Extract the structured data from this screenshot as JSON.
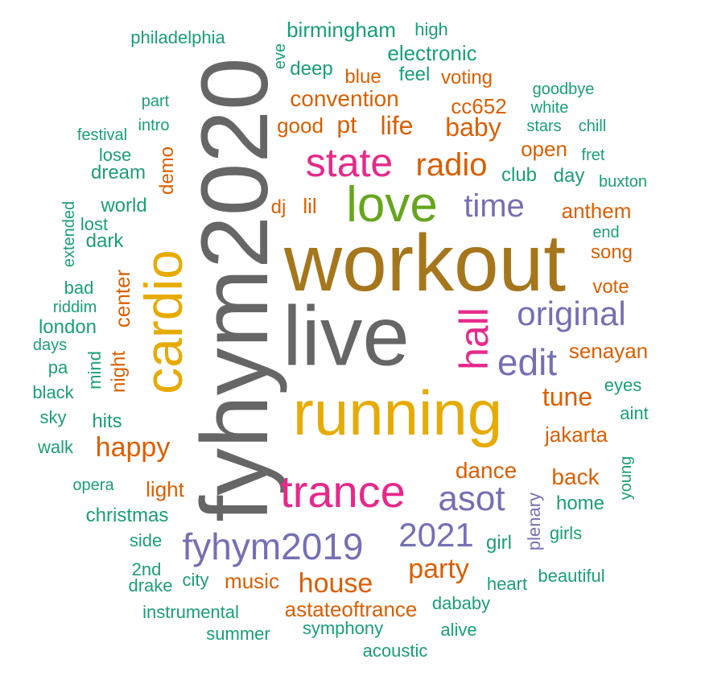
{
  "palette": {
    "teal": "#1b9e77",
    "orange": "#d95f02",
    "purple": "#7570b3",
    "pink": "#e7298a",
    "green": "#66a61e",
    "yellow": "#e6ab02",
    "brown": "#a6761d",
    "gray": "#666666"
  },
  "words": [
    {
      "text": "workout",
      "color": "brown"
    },
    {
      "text": "live",
      "color": "gray"
    },
    {
      "text": "fyhym2020",
      "color": "gray"
    },
    {
      "text": "running",
      "color": "yellow"
    },
    {
      "text": "cardio",
      "color": "yellow"
    },
    {
      "text": "love",
      "color": "green"
    },
    {
      "text": "trance",
      "color": "pink"
    },
    {
      "text": "state",
      "color": "pink"
    },
    {
      "text": "fyhym2019",
      "color": "purple"
    },
    {
      "text": "hall",
      "color": "pink"
    },
    {
      "text": "original",
      "color": "purple"
    },
    {
      "text": "edit",
      "color": "purple"
    },
    {
      "text": "asot",
      "color": "purple"
    },
    {
      "text": "2021",
      "color": "purple"
    },
    {
      "text": "time",
      "color": "purple"
    },
    {
      "text": "radio",
      "color": "orange"
    },
    {
      "text": "house",
      "color": "orange"
    },
    {
      "text": "happy",
      "color": "orange"
    },
    {
      "text": "party",
      "color": "orange"
    },
    {
      "text": "baby",
      "color": "orange"
    },
    {
      "text": "life",
      "color": "orange"
    },
    {
      "text": "convention",
      "color": "orange"
    },
    {
      "text": "tune",
      "color": "orange"
    },
    {
      "text": "pt",
      "color": "orange"
    },
    {
      "text": "cc652",
      "color": "orange"
    },
    {
      "text": "dance",
      "color": "orange"
    },
    {
      "text": "astateoftrance",
      "color": "orange"
    },
    {
      "text": "back",
      "color": "orange"
    },
    {
      "text": "music",
      "color": "orange"
    },
    {
      "text": "center",
      "color": "orange"
    },
    {
      "text": "jakarta",
      "color": "orange"
    },
    {
      "text": "senayan",
      "color": "orange"
    },
    {
      "text": "anthem",
      "color": "orange"
    },
    {
      "text": "good",
      "color": "orange"
    },
    {
      "text": "lil",
      "color": "orange"
    },
    {
      "text": "blue",
      "color": "orange"
    },
    {
      "text": "voting",
      "color": "orange"
    },
    {
      "text": "open",
      "color": "orange"
    },
    {
      "text": "light",
      "color": "orange"
    },
    {
      "text": "night",
      "color": "orange"
    },
    {
      "text": "plenary",
      "color": "purple"
    },
    {
      "text": "song",
      "color": "orange"
    },
    {
      "text": "vote",
      "color": "orange"
    },
    {
      "text": "dj",
      "color": "orange"
    },
    {
      "text": "demo",
      "color": "orange"
    },
    {
      "text": "electronic",
      "color": "teal"
    },
    {
      "text": "birmingham",
      "color": "teal"
    },
    {
      "text": "deep",
      "color": "teal"
    },
    {
      "text": "feel",
      "color": "teal"
    },
    {
      "text": "club",
      "color": "teal"
    },
    {
      "text": "day",
      "color": "teal"
    },
    {
      "text": "christmas",
      "color": "teal"
    },
    {
      "text": "home",
      "color": "teal"
    },
    {
      "text": "girl",
      "color": "teal"
    },
    {
      "text": "world",
      "color": "teal"
    },
    {
      "text": "dream",
      "color": "teal"
    },
    {
      "text": "london",
      "color": "teal"
    },
    {
      "text": "dark",
      "color": "teal"
    },
    {
      "text": "hits",
      "color": "teal"
    },
    {
      "text": "mind",
      "color": "teal"
    },
    {
      "text": "high",
      "color": "teal"
    },
    {
      "text": "eve",
      "color": "teal"
    },
    {
      "text": "philadelphia",
      "color": "teal"
    },
    {
      "text": "part",
      "color": "teal"
    },
    {
      "text": "intro",
      "color": "teal"
    },
    {
      "text": "festival",
      "color": "teal"
    },
    {
      "text": "lose",
      "color": "teal"
    },
    {
      "text": "extended",
      "color": "teal"
    },
    {
      "text": "lost",
      "color": "teal"
    },
    {
      "text": "bad",
      "color": "teal"
    },
    {
      "text": "riddim",
      "color": "teal"
    },
    {
      "text": "days",
      "color": "teal"
    },
    {
      "text": "pa",
      "color": "teal"
    },
    {
      "text": "black",
      "color": "teal"
    },
    {
      "text": "sky",
      "color": "teal"
    },
    {
      "text": "walk",
      "color": "teal"
    },
    {
      "text": "opera",
      "color": "teal"
    },
    {
      "text": "side",
      "color": "teal"
    },
    {
      "text": "2nd",
      "color": "teal"
    },
    {
      "text": "drake",
      "color": "teal"
    },
    {
      "text": "city",
      "color": "teal"
    },
    {
      "text": "instrumental",
      "color": "teal"
    },
    {
      "text": "summer",
      "color": "teal"
    },
    {
      "text": "symphony",
      "color": "teal"
    },
    {
      "text": "acoustic",
      "color": "teal"
    },
    {
      "text": "alive",
      "color": "teal"
    },
    {
      "text": "dababy",
      "color": "teal"
    },
    {
      "text": "heart",
      "color": "teal"
    },
    {
      "text": "beautiful",
      "color": "teal"
    },
    {
      "text": "girls",
      "color": "teal"
    },
    {
      "text": "young",
      "color": "teal"
    },
    {
      "text": "aint",
      "color": "teal"
    },
    {
      "text": "eyes",
      "color": "teal"
    },
    {
      "text": "end",
      "color": "teal"
    },
    {
      "text": "buxton",
      "color": "teal"
    },
    {
      "text": "fret",
      "color": "teal"
    },
    {
      "text": "chill",
      "color": "teal"
    },
    {
      "text": "stars",
      "color": "teal"
    },
    {
      "text": "white",
      "color": "teal"
    },
    {
      "text": "goodbye",
      "color": "teal"
    }
  ]
}
